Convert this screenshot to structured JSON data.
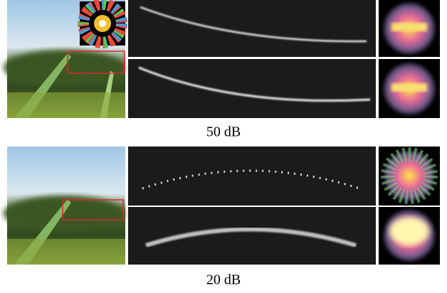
{
  "rows": [
    {
      "caption": "50 dB"
    },
    {
      "caption": "20 dB"
    }
  ]
}
